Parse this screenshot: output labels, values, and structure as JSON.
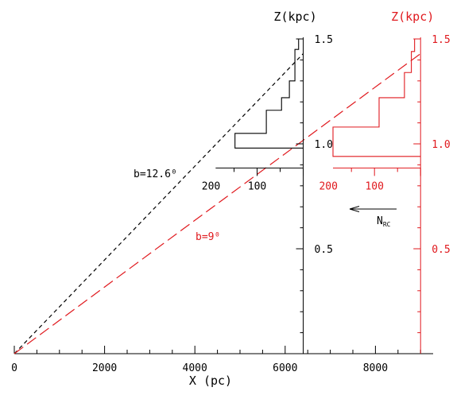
{
  "chart_data": {
    "type": "line",
    "title": "",
    "xlabel": "X (pc)",
    "xlim": [
      0,
      9200
    ],
    "x_ticks": [
      "0",
      "2000",
      "4000",
      "6000",
      "8000"
    ],
    "z_axes": [
      {
        "label": "Z(kpc)",
        "x_position_pc": 6400,
        "ticks": [
          "1.5",
          "1.0",
          "0.5"
        ],
        "color": "#000000"
      },
      {
        "label": "Z(kpc)",
        "x_position_pc": 9000,
        "ticks": [
          "1.5",
          "1.0",
          "0.5"
        ],
        "color": "#e0191e"
      }
    ],
    "series": [
      {
        "name": "b=12.6⁰",
        "style": "short-dash",
        "color": "#000000",
        "x": [
          0,
          6400
        ],
        "z_kpc": [
          0.0,
          1.43
        ]
      },
      {
        "name": "b=9⁰",
        "style": "long-dash",
        "color": "#e0191e",
        "x": [
          0,
          9000
        ],
        "z_kpc": [
          0.0,
          1.43
        ]
      }
    ],
    "histograms": [
      {
        "color": "#000000",
        "x_ticks": [
          "200",
          "100"
        ],
        "bins": [
          {
            "z_from": 0.98,
            "z_to": 1.05,
            "n": 148
          },
          {
            "z_from": 1.05,
            "z_to": 1.16,
            "n": 80
          },
          {
            "z_from": 1.16,
            "z_to": 1.22,
            "n": 47
          },
          {
            "z_from": 1.22,
            "z_to": 1.3,
            "n": 30
          },
          {
            "z_from": 1.3,
            "z_to": 1.45,
            "n": 18
          },
          {
            "z_from": 1.45,
            "z_to": 1.5,
            "n": 10
          }
        ]
      },
      {
        "color": "#e0191e",
        "x_ticks": [
          "200",
          "100"
        ],
        "bins": [
          {
            "z_from": 0.94,
            "z_to": 1.08,
            "n": 190
          },
          {
            "z_from": 1.08,
            "z_to": 1.22,
            "n": 90
          },
          {
            "z_from": 1.22,
            "z_to": 1.34,
            "n": 35
          },
          {
            "z_from": 1.34,
            "z_to": 1.44,
            "n": 20
          },
          {
            "z_from": 1.44,
            "z_to": 1.5,
            "n": 13
          }
        ]
      }
    ],
    "annotations": {
      "arrow_label": "N",
      "arrow_label_sub": "RC"
    }
  }
}
